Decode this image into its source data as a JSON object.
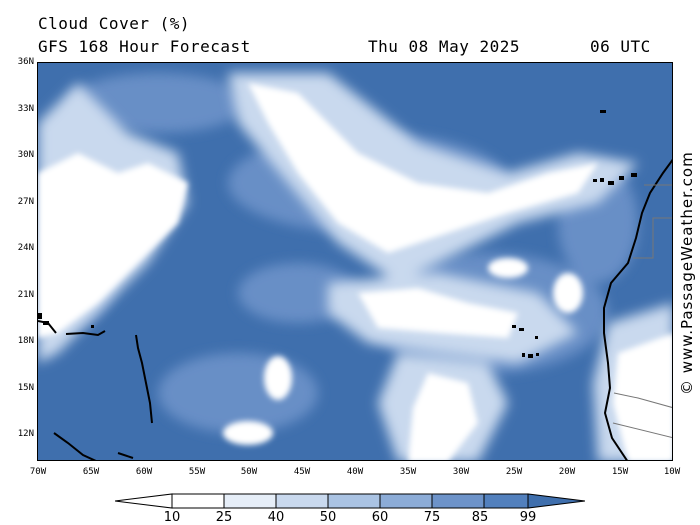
{
  "header": {
    "title": "Cloud Cover (%)",
    "subtitle": "GFS 168 Hour Forecast",
    "date": "Thu 08 May 2025",
    "time": "06 UTC"
  },
  "credit": "© www.PassageWeather.com",
  "map": {
    "lat_labels": [
      "36N",
      "33N",
      "30N",
      "27N",
      "24N",
      "21N",
      "18N",
      "15N",
      "12N"
    ],
    "lon_labels": [
      "70W",
      "65W",
      "60W",
      "55W",
      "50W",
      "45W",
      "40W",
      "35W",
      "30W",
      "25W",
      "20W",
      "15W",
      "10W"
    ]
  },
  "legend": {
    "ticks": [
      "10",
      "25",
      "40",
      "50",
      "60",
      "75",
      "85",
      "99"
    ],
    "colors": [
      "#ffffff",
      "#e6eef8",
      "#c9d9ee",
      "#aac3e3",
      "#8cacd7",
      "#6d93c9",
      "#5280bd",
      "#3f6fad"
    ]
  }
}
